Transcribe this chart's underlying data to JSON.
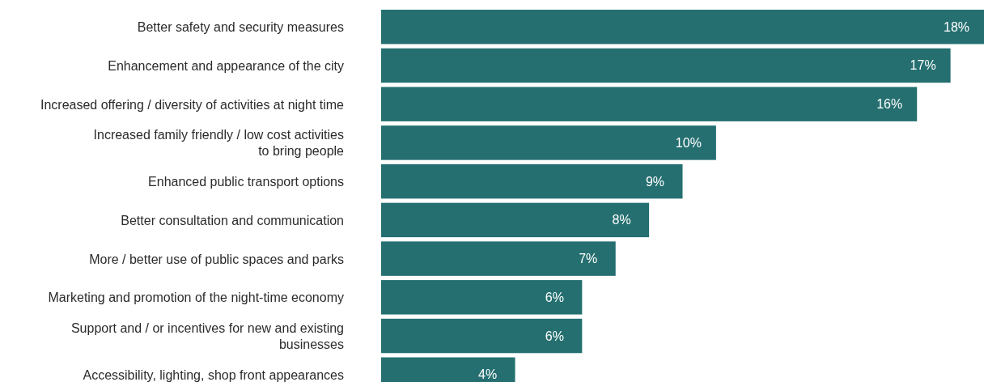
{
  "chart_data": {
    "type": "bar",
    "orientation": "horizontal",
    "categories": [
      "Better safety and security measures",
      "Enhancement and appearance of the city",
      "Increased offering / diversity of activities at night time",
      "Increased family friendly / low cost activities\nto bring people",
      "Enhanced public transport options",
      "Better consultation and communication",
      "More / better use of public  spaces and parks",
      "Marketing and promotion of the night-time economy",
      "Support and / or incentives for new and existing\nbusinesses",
      "Accessibility, lighting, shop front appearances"
    ],
    "values": [
      18,
      17,
      16,
      10,
      9,
      8,
      7,
      6,
      6,
      4
    ],
    "value_labels": [
      "18%",
      "17%",
      "16%",
      "10%",
      "9%",
      "8%",
      "7%",
      "6%",
      "6%",
      "4%"
    ],
    "color": "#256f70"
  }
}
